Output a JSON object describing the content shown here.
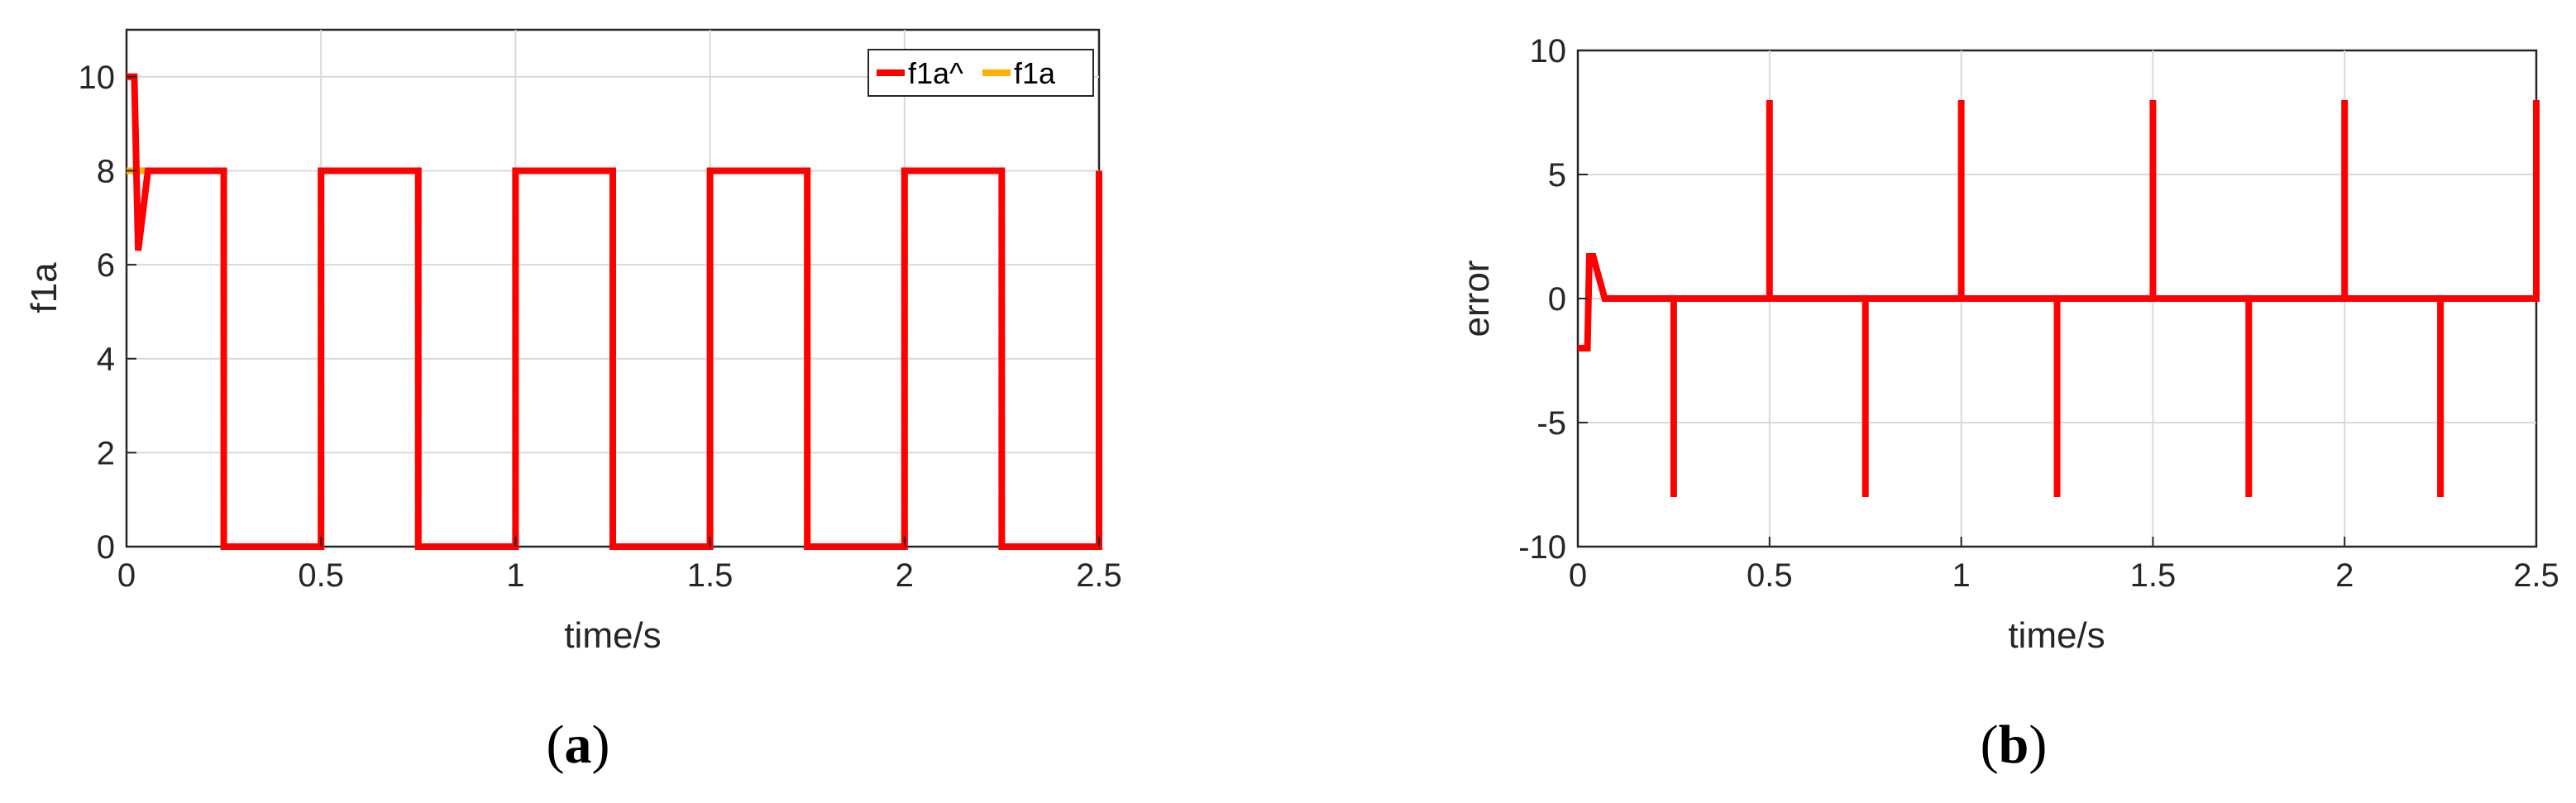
{
  "chart_data": [
    {
      "type": "line",
      "xlabel": "time/s",
      "ylabel": "f1a",
      "xlim": [
        0,
        2.5
      ],
      "ylim": [
        0,
        11
      ],
      "xticks": [
        "0",
        "0.5",
        "1",
        "1.5",
        "2",
        "2.5"
      ],
      "yticks": [
        "0",
        "2",
        "4",
        "6",
        "8",
        "10"
      ],
      "grid": true,
      "legend_position": "top-right",
      "caption": "(a)",
      "caption_letter": "a",
      "series": [
        {
          "name": "f1a",
          "color": "#FFB000",
          "dash": true,
          "x": [
            0,
            0.25,
            0.25,
            0.5,
            0.5,
            0.75,
            0.75,
            1.0,
            1.0,
            1.25,
            1.25,
            1.5,
            1.5,
            1.75,
            1.75,
            2.0,
            2.0,
            2.25,
            2.25,
            2.5,
            2.5
          ],
          "y": [
            8,
            8,
            0,
            0,
            8,
            8,
            0,
            0,
            8,
            8,
            0,
            0,
            8,
            8,
            0,
            0,
            8,
            8,
            0,
            0,
            8
          ]
        },
        {
          "name": "f1a^",
          "color": "#FF0000",
          "dash": false,
          "x": [
            0,
            0.02,
            0.03,
            0.055,
            0.07,
            0.25,
            0.25,
            0.5,
            0.5,
            0.75,
            0.75,
            1.0,
            1.0,
            1.25,
            1.25,
            1.5,
            1.5,
            1.75,
            1.75,
            2.0,
            2.0,
            2.25,
            2.25,
            2.5,
            2.5
          ],
          "y": [
            10,
            10,
            6.3,
            8,
            8,
            8,
            0,
            0,
            8,
            8,
            0,
            0,
            8,
            8,
            0,
            0,
            8,
            8,
            0,
            0,
            8,
            8,
            0,
            0,
            8
          ]
        }
      ]
    },
    {
      "type": "line",
      "xlabel": "time/s",
      "ylabel": "error",
      "xlim": [
        0,
        2.5
      ],
      "ylim": [
        -10,
        10
      ],
      "xticks": [
        "0",
        "0.5",
        "1",
        "1.5",
        "2",
        "2.5"
      ],
      "yticks": [
        "-10",
        "-5",
        "0",
        "5",
        "10"
      ],
      "grid": true,
      "caption": "(b)",
      "caption_letter": "b",
      "series": [
        {
          "color": "#FF0000",
          "x": [
            0,
            0.025,
            0.03,
            0.04,
            0.07,
            0.25,
            0.25,
            0.25,
            0.5,
            0.5,
            0.5,
            0.75,
            0.75,
            0.75,
            1.0,
            1.0,
            1.0,
            1.25,
            1.25,
            1.25,
            1.5,
            1.5,
            1.5,
            1.75,
            1.75,
            1.75,
            2.0,
            2.0,
            2.0,
            2.25,
            2.25,
            2.25,
            2.5,
            2.5
          ],
          "y": [
            -2,
            -2,
            1.7,
            1.7,
            0,
            0,
            -8,
            0,
            0,
            8,
            0,
            0,
            -8,
            0,
            0,
            8,
            0,
            0,
            -8,
            0,
            0,
            8,
            0,
            0,
            -8,
            0,
            0,
            8,
            0,
            0,
            -8,
            0,
            0,
            8
          ]
        }
      ]
    }
  ]
}
